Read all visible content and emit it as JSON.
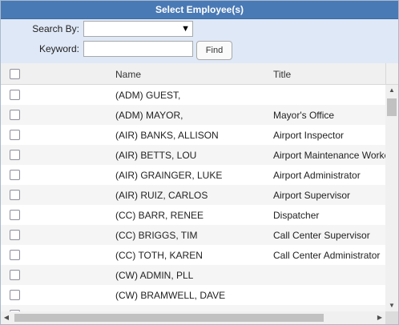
{
  "window": {
    "title": "Select Employee(s)"
  },
  "search": {
    "search_by_label": "Search By:",
    "search_by_value": "",
    "keyword_label": "Keyword:",
    "keyword_value": "",
    "keyword_placeholder": "",
    "find_label": "Find"
  },
  "grid": {
    "columns": {
      "name": "Name",
      "title": "Title"
    },
    "rows": [
      {
        "name": "(ADM) GUEST,",
        "title": ""
      },
      {
        "name": "(ADM) MAYOR,",
        "title": "Mayor's Office"
      },
      {
        "name": "(AIR) BANKS, ALLISON",
        "title": "Airport Inspector"
      },
      {
        "name": "(AIR) BETTS, LOU",
        "title": "Airport Maintenance Worker"
      },
      {
        "name": "(AIR) GRAINGER, LUKE",
        "title": "Airport Administrator"
      },
      {
        "name": "(AIR) RUIZ, CARLOS",
        "title": "Airport Supervisor"
      },
      {
        "name": "(CC) BARR, RENEE",
        "title": "Dispatcher"
      },
      {
        "name": "(CC) BRIGGS, TIM",
        "title": "Call Center Supervisor"
      },
      {
        "name": "(CC) TOTH, KAREN",
        "title": "Call Center Administrator"
      },
      {
        "name": "(CW) ADMIN, PLL",
        "title": ""
      },
      {
        "name": "(CW) BRAMWELL, DAVE",
        "title": ""
      },
      {
        "name": "",
        "title": ""
      }
    ]
  },
  "icons": {
    "dropdown": "chevron-down-icon",
    "scroll_up": "arrow-up-icon",
    "scroll_down": "arrow-down-icon",
    "scroll_left": "arrow-left-icon",
    "scroll_right": "arrow-right-icon"
  },
  "colors": {
    "titlebar": "#4a7ab5",
    "search_panel": "#dfe8f6",
    "row_alt": "#f5f5f5"
  }
}
